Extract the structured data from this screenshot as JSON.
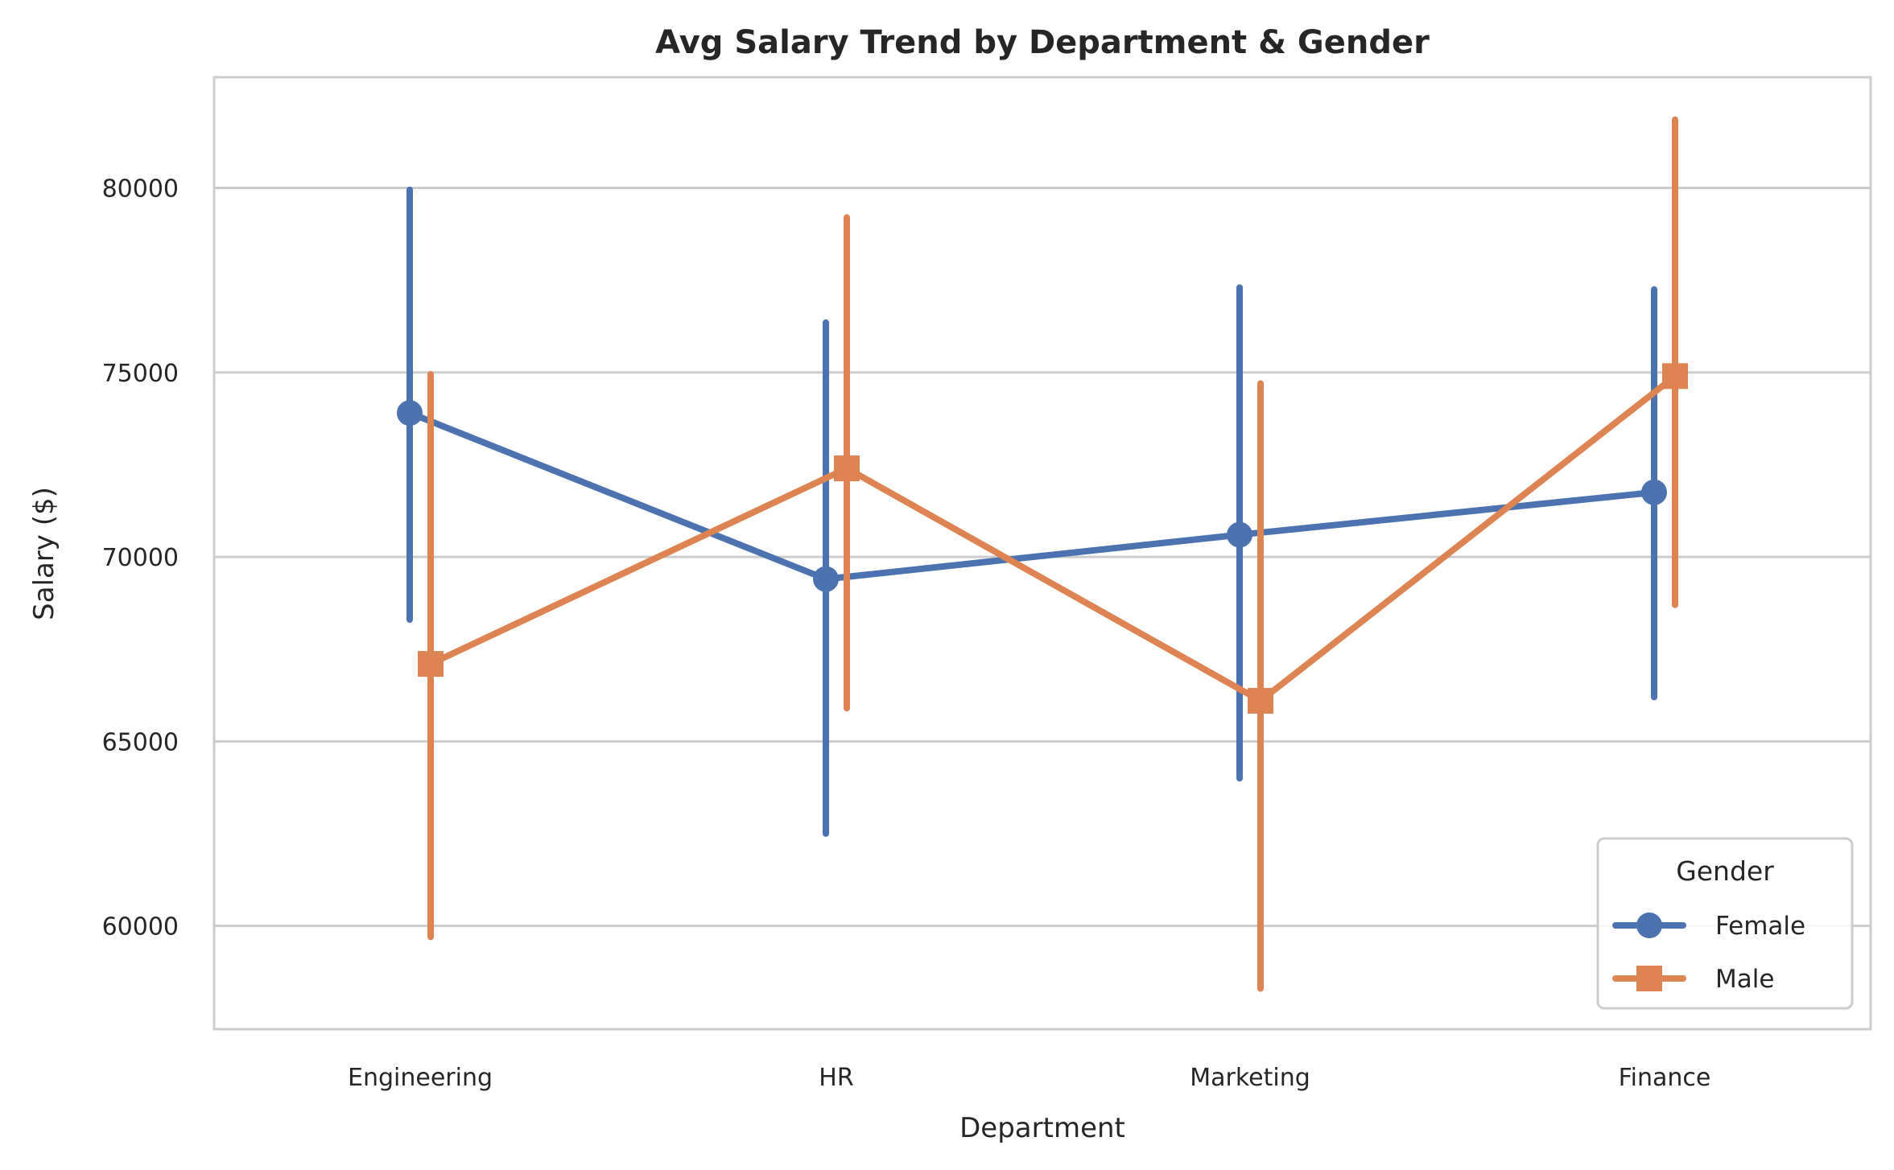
{
  "chart_data": {
    "type": "line",
    "title": "Avg Salary Trend by Department & Gender",
    "xlabel": "Department",
    "ylabel": "Salary ($)",
    "categories": [
      "Engineering",
      "HR",
      "Marketing",
      "Finance"
    ],
    "ylim": [
      57200,
      83000
    ],
    "yticks": [
      60000,
      65000,
      70000,
      75000,
      80000
    ],
    "grid": "horizontal",
    "legend": {
      "title": "Gender",
      "placement": "bottom-right"
    },
    "series": [
      {
        "name": "Female",
        "color": "#4c72b0",
        "marker": "circle",
        "values": [
          73900,
          69400,
          70600,
          71750
        ],
        "ci_low": [
          68300,
          62500,
          64000,
          66200
        ],
        "ci_high": [
          79950,
          76350,
          77300,
          77250
        ]
      },
      {
        "name": "Male",
        "color": "#dd8452",
        "marker": "square",
        "values": [
          67100,
          72400,
          66100,
          74900
        ],
        "ci_low": [
          59700,
          65900,
          58300,
          68700
        ],
        "ci_high": [
          74950,
          79200,
          74700,
          81850
        ]
      }
    ]
  }
}
